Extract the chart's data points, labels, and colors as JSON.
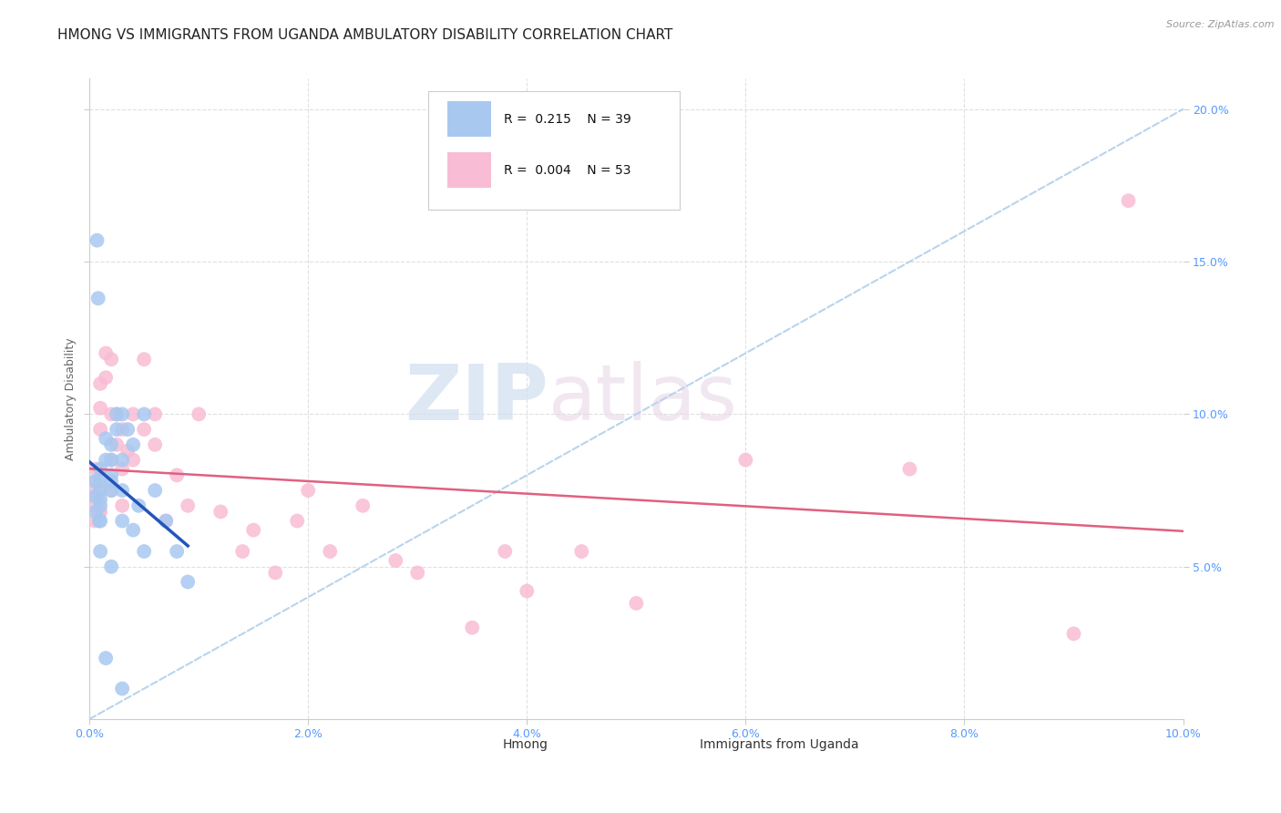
{
  "title": "HMONG VS IMMIGRANTS FROM UGANDA AMBULATORY DISABILITY CORRELATION CHART",
  "source": "Source: ZipAtlas.com",
  "ylabel": "Ambulatory Disability",
  "watermark_zip": "ZIP",
  "watermark_atlas": "atlas",
  "xlim": [
    0.0,
    0.1
  ],
  "ylim": [
    0.0,
    0.21
  ],
  "xticks": [
    0.0,
    0.02,
    0.04,
    0.06,
    0.08,
    0.1
  ],
  "yticks": [
    0.05,
    0.1,
    0.15,
    0.2
  ],
  "xtick_labels": [
    "0.0%",
    "2.0%",
    "4.0%",
    "6.0%",
    "8.0%",
    "10.0%"
  ],
  "ytick_labels": [
    "5.0%",
    "10.0%",
    "15.0%",
    "20.0%"
  ],
  "legend_R1": "0.215",
  "legend_N1": "39",
  "legend_R2": "0.004",
  "legend_N2": "53",
  "hmong_scatter_color": "#a8c8f0",
  "uganda_scatter_color": "#f8bcd4",
  "trendline_hmong_color": "#2255bb",
  "trendline_uganda_color": "#e06080",
  "trendline_dashed_color": "#b8d4ee",
  "background_color": "#ffffff",
  "grid_color": "#e0e0e0",
  "tick_color": "#5599ff",
  "title_fontsize": 11,
  "axis_label_fontsize": 9,
  "tick_fontsize": 9,
  "legend_fontsize": 10,
  "hmong_x": [
    0.0005,
    0.0005,
    0.0006,
    0.0007,
    0.0008,
    0.0009,
    0.001,
    0.001,
    0.001,
    0.001,
    0.001,
    0.001,
    0.001,
    0.0015,
    0.0015,
    0.002,
    0.002,
    0.002,
    0.002,
    0.002,
    0.002,
    0.0025,
    0.0025,
    0.003,
    0.003,
    0.003,
    0.003,
    0.0035,
    0.004,
    0.004,
    0.0045,
    0.005,
    0.005,
    0.006,
    0.007,
    0.008,
    0.009,
    0.0015,
    0.003
  ],
  "hmong_y": [
    0.078,
    0.073,
    0.068,
    0.157,
    0.138,
    0.065,
    0.082,
    0.078,
    0.075,
    0.072,
    0.07,
    0.065,
    0.055,
    0.092,
    0.085,
    0.08,
    0.075,
    0.05,
    0.09,
    0.085,
    0.078,
    0.1,
    0.095,
    0.1,
    0.085,
    0.075,
    0.065,
    0.095,
    0.09,
    0.062,
    0.07,
    0.1,
    0.055,
    0.075,
    0.065,
    0.055,
    0.045,
    0.02,
    0.01
  ],
  "uganda_x": [
    0.0003,
    0.0004,
    0.0005,
    0.0006,
    0.0007,
    0.0008,
    0.0009,
    0.001,
    0.001,
    0.001,
    0.001,
    0.001,
    0.0015,
    0.0015,
    0.002,
    0.002,
    0.002,
    0.002,
    0.0025,
    0.0025,
    0.003,
    0.003,
    0.003,
    0.0035,
    0.004,
    0.004,
    0.005,
    0.005,
    0.006,
    0.006,
    0.007,
    0.008,
    0.009,
    0.01,
    0.012,
    0.014,
    0.015,
    0.017,
    0.019,
    0.02,
    0.022,
    0.025,
    0.028,
    0.03,
    0.035,
    0.038,
    0.04,
    0.045,
    0.05,
    0.06,
    0.075,
    0.09,
    0.095
  ],
  "uganda_y": [
    0.075,
    0.07,
    0.065,
    0.082,
    0.078,
    0.073,
    0.068,
    0.11,
    0.102,
    0.095,
    0.075,
    0.068,
    0.12,
    0.112,
    0.118,
    0.1,
    0.085,
    0.075,
    0.1,
    0.09,
    0.095,
    0.082,
    0.07,
    0.088,
    0.1,
    0.085,
    0.118,
    0.095,
    0.1,
    0.09,
    0.065,
    0.08,
    0.07,
    0.1,
    0.068,
    0.055,
    0.062,
    0.048,
    0.065,
    0.075,
    0.055,
    0.07,
    0.052,
    0.048,
    0.03,
    0.055,
    0.042,
    0.055,
    0.038,
    0.085,
    0.082,
    0.028,
    0.17
  ]
}
